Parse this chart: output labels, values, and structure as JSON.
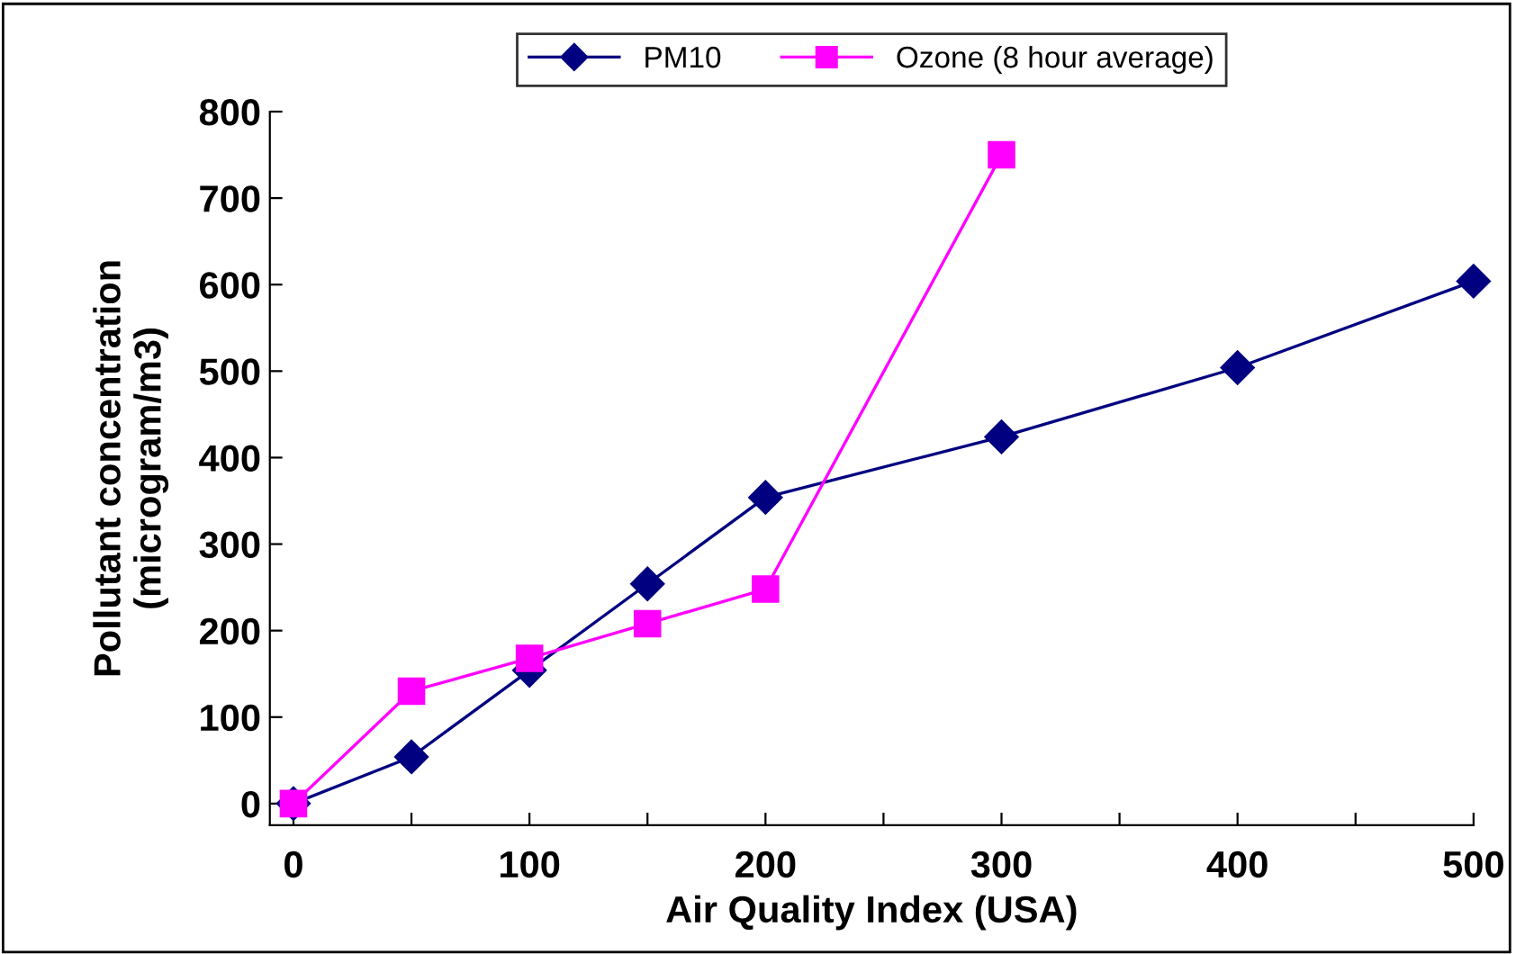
{
  "chart_data": {
    "type": "line",
    "xlabel": "Air Quality Index (USA)",
    "ylabel": "Pollutant concentration\n(microgram/m3)",
    "series": [
      {
        "name": "PM10",
        "color": "#000080",
        "marker": "diamond",
        "x": [
          0,
          50,
          100,
          150,
          200,
          300,
          400,
          500
        ],
        "values": [
          0,
          54,
          154,
          254,
          354,
          424,
          504,
          604
        ]
      },
      {
        "name": "Ozone (8 hour average)",
        "color": "#ff00ff",
        "marker": "square",
        "x": [
          0,
          50,
          100,
          150,
          200,
          300
        ],
        "values": [
          0,
          130,
          168,
          208,
          248,
          750
        ]
      }
    ],
    "xlim": [
      -10,
      500
    ],
    "ylim": [
      -25,
      800
    ],
    "xticks": [
      0,
      {
        "value": 50,
        "label": null
      },
      100,
      {
        "value": 150,
        "label": null
      },
      200,
      {
        "value": 250,
        "label": null
      },
      300,
      {
        "value": 350,
        "label": null
      },
      400,
      {
        "value": 450,
        "label": null
      },
      500
    ],
    "yticks": [
      0,
      100,
      200,
      300,
      400,
      500,
      600,
      700,
      800
    ],
    "grid": false,
    "legend": "top",
    "line_style": "solid"
  }
}
